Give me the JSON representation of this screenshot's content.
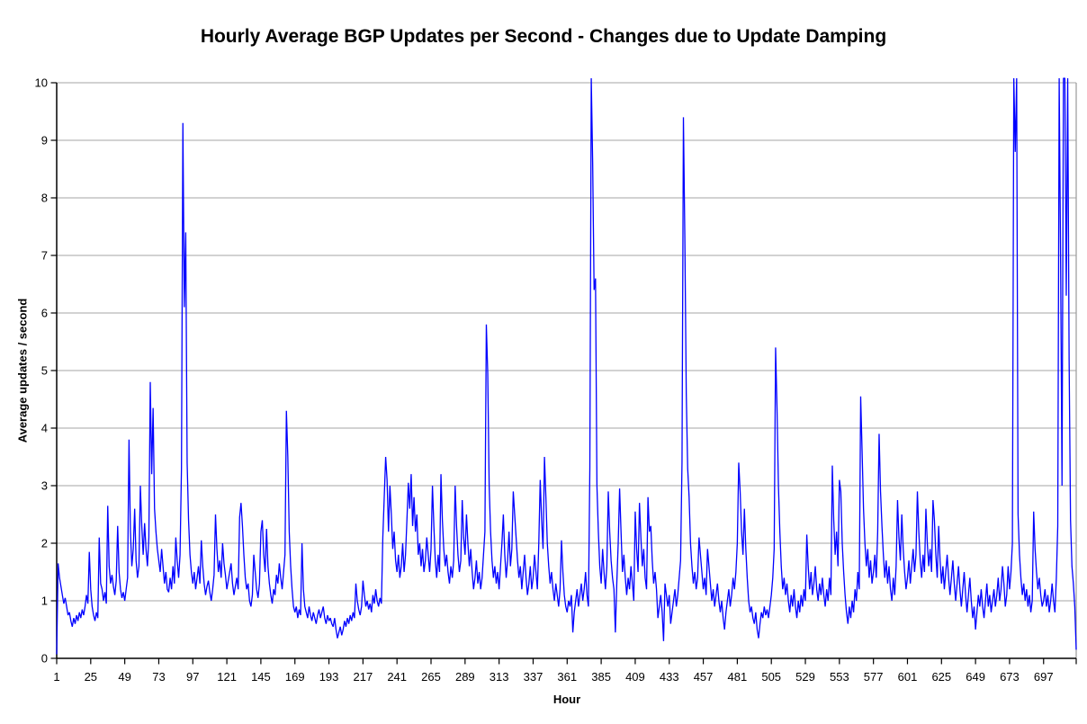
{
  "chart_data": {
    "type": "line",
    "title": "Hourly Average BGP Updates per Second - Changes due to Update Damping",
    "xlabel": "Hour",
    "ylabel": "Average updates / second",
    "ylim": [
      0,
      10
    ],
    "y_ticks": [
      0,
      1,
      2,
      3,
      4,
      5,
      6,
      7,
      8,
      9,
      10
    ],
    "x_tick_labels": [
      1,
      25,
      49,
      73,
      97,
      121,
      145,
      169,
      193,
      217,
      241,
      265,
      289,
      313,
      337,
      361,
      385,
      409,
      433,
      457,
      481,
      505,
      529,
      553,
      577,
      601,
      625,
      649,
      673,
      697
    ],
    "x_start": 1,
    "x_end": 720,
    "grid": "horizontal-gray",
    "legend": "none",
    "colors": {
      "line": "#0000FF",
      "gridline": "#A6A6A6",
      "axis": "#000000",
      "plot_right_border": "#999999",
      "background": "#FFFFFF",
      "text": "#000000"
    },
    "note_values_above_ymax_are_clipped": true,
    "series": [
      {
        "name": "Hourly average BGP updates per second",
        "color": "#0000FF",
        "values": [
          0.07,
          1.65,
          1.4,
          1.25,
          1.1,
          0.95,
          1.05,
          0.9,
          0.75,
          0.8,
          0.65,
          0.55,
          0.7,
          0.6,
          0.75,
          0.65,
          0.8,
          0.7,
          0.85,
          0.75,
          0.9,
          1.1,
          0.95,
          1.85,
          1.2,
          0.9,
          0.75,
          0.65,
          0.8,
          0.7,
          2.1,
          1.3,
          1.2,
          1.0,
          1.15,
          0.95,
          2.65,
          1.6,
          1.3,
          1.45,
          1.25,
          1.1,
          1.35,
          2.3,
          1.5,
          1.2,
          1.05,
          1.15,
          1.0,
          1.2,
          1.4,
          3.8,
          2.2,
          1.6,
          1.9,
          2.6,
          1.7,
          1.4,
          1.6,
          3.0,
          2.3,
          1.8,
          2.35,
          1.9,
          1.6,
          2.1,
          4.8,
          3.2,
          4.35,
          2.6,
          2.2,
          1.9,
          1.7,
          1.5,
          1.9,
          1.6,
          1.3,
          1.5,
          1.2,
          1.15,
          1.4,
          1.2,
          1.6,
          1.3,
          2.1,
          1.7,
          1.4,
          1.8,
          3.3,
          9.3,
          6.1,
          7.4,
          3.4,
          2.4,
          1.8,
          1.5,
          1.3,
          1.5,
          1.2,
          1.4,
          1.6,
          1.3,
          2.05,
          1.6,
          1.3,
          1.1,
          1.25,
          1.35,
          1.15,
          1.0,
          1.2,
          1.45,
          2.5,
          1.9,
          1.5,
          1.7,
          1.4,
          2.0,
          1.65,
          1.45,
          1.2,
          1.35,
          1.5,
          1.65,
          1.3,
          1.1,
          1.25,
          1.4,
          1.2,
          2.45,
          2.7,
          2.3,
          1.8,
          1.4,
          1.2,
          1.3,
          1.0,
          0.9,
          1.1,
          1.8,
          1.5,
          1.2,
          1.05,
          1.3,
          2.2,
          2.4,
          1.8,
          1.5,
          2.25,
          1.6,
          1.3,
          1.1,
          0.95,
          1.2,
          1.1,
          1.45,
          1.3,
          1.65,
          1.4,
          1.2,
          1.5,
          1.8,
          4.3,
          3.5,
          2.2,
          1.6,
          1.2,
          0.9,
          0.8,
          0.9,
          0.7,
          0.85,
          0.75,
          2.0,
          1.2,
          0.9,
          0.8,
          0.7,
          0.9,
          0.75,
          0.65,
          0.8,
          0.7,
          0.6,
          0.75,
          0.85,
          0.7,
          0.8,
          0.9,
          0.7,
          0.6,
          0.75,
          0.65,
          0.7,
          0.6,
          0.55,
          0.7,
          0.5,
          0.35,
          0.45,
          0.55,
          0.4,
          0.5,
          0.65,
          0.55,
          0.7,
          0.6,
          0.75,
          0.65,
          0.8,
          0.7,
          1.3,
          1.0,
          0.85,
          0.75,
          0.9,
          1.35,
          1.1,
          0.9,
          1.0,
          0.85,
          0.95,
          0.8,
          1.1,
          0.95,
          1.2,
          1.0,
          0.9,
          1.05,
          0.95,
          2.1,
          2.8,
          3.5,
          3.1,
          2.2,
          3.0,
          2.5,
          1.9,
          2.2,
          1.7,
          1.5,
          1.8,
          1.4,
          1.6,
          2.0,
          1.5,
          1.8,
          2.4,
          3.05,
          2.6,
          3.2,
          2.3,
          2.8,
          2.2,
          2.5,
          1.8,
          2.0,
          1.6,
          1.9,
          1.5,
          1.7,
          2.1,
          1.8,
          1.5,
          1.9,
          3.0,
          2.3,
          1.7,
          1.4,
          1.8,
          1.5,
          3.2,
          2.4,
          1.9,
          1.6,
          1.8,
          1.5,
          1.3,
          1.6,
          1.4,
          1.7,
          3.0,
          2.3,
          1.8,
          1.5,
          1.7,
          2.75,
          2.1,
          1.8,
          2.5,
          2.0,
          1.6,
          1.9,
          1.5,
          1.2,
          1.4,
          1.7,
          1.3,
          1.5,
          1.2,
          1.4,
          1.8,
          2.2,
          5.8,
          4.95,
          3.0,
          2.2,
          1.7,
          1.4,
          1.6,
          1.3,
          1.5,
          1.2,
          1.6,
          2.0,
          2.5,
          1.8,
          1.4,
          1.7,
          2.2,
          1.6,
          1.9,
          2.9,
          2.5,
          2.1,
          1.7,
          1.4,
          1.6,
          1.2,
          1.5,
          1.8,
          1.4,
          1.1,
          1.3,
          1.6,
          1.2,
          1.4,
          1.8,
          1.5,
          1.2,
          2.0,
          3.1,
          2.4,
          1.9,
          3.5,
          2.8,
          2.0,
          1.6,
          1.3,
          1.5,
          1.2,
          1.0,
          1.3,
          1.1,
          0.9,
          1.2,
          2.05,
          1.5,
          1.1,
          0.9,
          0.8,
          1.0,
          0.9,
          1.1,
          0.45,
          0.8,
          1.0,
          1.2,
          0.9,
          1.1,
          1.3,
          1.0,
          1.2,
          1.5,
          1.1,
          0.9,
          3.3,
          10.5,
          8.6,
          6.4,
          6.6,
          3.0,
          2.2,
          1.6,
          1.3,
          1.9,
          1.5,
          1.2,
          1.6,
          2.9,
          2.2,
          1.7,
          1.4,
          1.2,
          0.45,
          1.3,
          2.0,
          2.95,
          2.2,
          1.5,
          1.8,
          1.4,
          1.1,
          1.4,
          1.2,
          1.6,
          1.3,
          1.0,
          2.55,
          1.9,
          1.5,
          2.7,
          2.1,
          1.6,
          1.9,
          1.4,
          1.2,
          2.8,
          2.2,
          2.3,
          1.7,
          1.3,
          1.5,
          1.2,
          0.7,
          0.9,
          1.1,
          0.8,
          0.3,
          1.3,
          1.1,
          0.9,
          1.1,
          0.6,
          0.8,
          1.0,
          1.2,
          0.9,
          1.1,
          1.4,
          1.7,
          3.4,
          9.4,
          7.3,
          4.6,
          3.3,
          2.8,
          2.0,
          1.6,
          1.3,
          1.5,
          1.2,
          1.4,
          2.1,
          1.8,
          1.5,
          1.2,
          1.4,
          1.1,
          1.9,
          1.6,
          1.3,
          1.0,
          1.2,
          0.9,
          1.1,
          1.3,
          1.0,
          0.8,
          1.0,
          0.7,
          0.5,
          0.8,
          1.0,
          1.2,
          0.9,
          1.1,
          1.4,
          1.2,
          1.5,
          2.0,
          3.4,
          2.9,
          2.2,
          1.8,
          2.6,
          1.9,
          1.4,
          1.0,
          0.8,
          0.9,
          0.7,
          0.6,
          0.8,
          0.5,
          0.35,
          0.6,
          0.8,
          0.7,
          0.9,
          0.75,
          0.85,
          0.7,
          0.9,
          1.1,
          1.4,
          1.9,
          5.4,
          4.35,
          3.0,
          2.2,
          1.6,
          1.2,
          1.4,
          1.1,
          1.3,
          1.0,
          0.8,
          1.1,
          0.9,
          1.2,
          0.9,
          0.7,
          1.0,
          0.8,
          1.1,
          0.9,
          1.2,
          1.0,
          2.15,
          1.6,
          1.2,
          1.5,
          1.1,
          1.3,
          1.6,
          1.2,
          1.0,
          1.3,
          1.1,
          1.4,
          1.1,
          0.9,
          1.2,
          1.0,
          1.4,
          1.1,
          3.35,
          2.4,
          1.8,
          2.2,
          1.6,
          3.1,
          2.9,
          2.0,
          1.5,
          1.1,
          0.8,
          0.6,
          0.9,
          0.7,
          1.0,
          0.8,
          1.2,
          1.0,
          1.5,
          1.2,
          4.55,
          3.6,
          2.6,
          2.0,
          1.6,
          1.9,
          1.4,
          1.7,
          1.3,
          1.5,
          1.8,
          1.4,
          2.2,
          3.9,
          2.9,
          2.3,
          1.8,
          1.4,
          1.7,
          1.3,
          1.6,
          1.2,
          1.0,
          1.4,
          1.1,
          1.6,
          2.75,
          2.1,
          1.7,
          2.5,
          1.9,
          1.5,
          1.2,
          1.4,
          1.7,
          1.3,
          1.6,
          1.9,
          1.5,
          1.8,
          2.9,
          2.2,
          1.7,
          1.4,
          1.8,
          1.5,
          2.6,
          2.0,
          1.6,
          1.9,
          1.5,
          2.75,
          2.4,
          1.8,
          1.4,
          2.3,
          1.7,
          1.3,
          1.6,
          1.2,
          1.5,
          1.8,
          1.4,
          1.1,
          1.4,
          1.7,
          1.3,
          1.0,
          1.3,
          1.6,
          1.2,
          0.9,
          1.2,
          1.5,
          1.1,
          0.8,
          1.1,
          1.4,
          1.0,
          0.7,
          0.9,
          0.5,
          0.8,
          1.1,
          0.9,
          1.2,
          0.9,
          0.7,
          1.0,
          1.3,
          0.9,
          1.1,
          0.8,
          1.0,
          1.2,
          0.9,
          1.1,
          1.4,
          1.0,
          1.2,
          1.6,
          1.3,
          0.9,
          1.1,
          1.6,
          1.2,
          1.5,
          2.0,
          10.5,
          8.8,
          10.3,
          2.5,
          1.8,
          1.4,
          1.1,
          1.3,
          1.0,
          1.2,
          0.9,
          1.1,
          0.8,
          1.0,
          2.55,
          1.9,
          1.5,
          1.2,
          1.4,
          1.1,
          0.9,
          1.0,
          1.2,
          0.9,
          1.1,
          0.8,
          1.0,
          1.3,
          1.0,
          0.8,
          1.4,
          2.3,
          10.4,
          6.9,
          3.0,
          10.5,
          10.2,
          6.3,
          10.3,
          5.2,
          2.4,
          1.6,
          1.3,
          0.9,
          0.15
        ]
      }
    ]
  }
}
